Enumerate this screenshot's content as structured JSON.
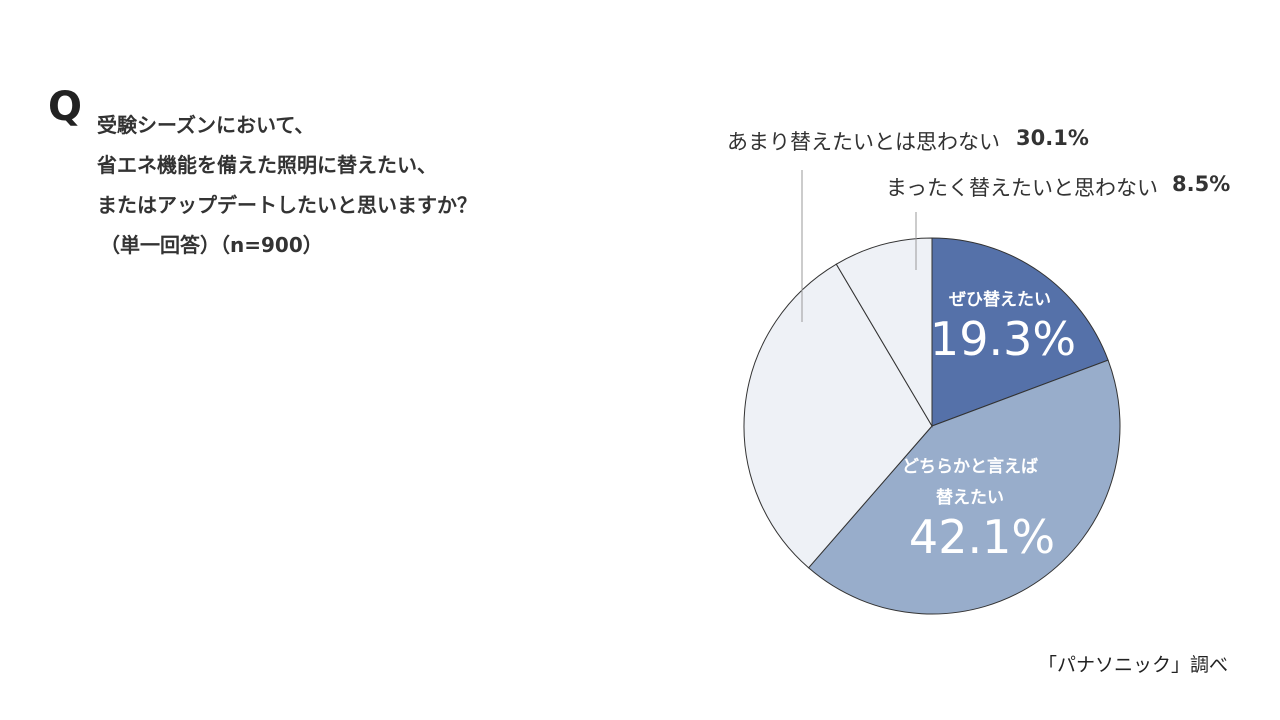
{
  "chart_data": {
    "type": "pie",
    "question_mark": "Q",
    "title_lines": [
      "受験シーズンにおいて、",
      "省エネ機能を備えた照明に替えたい、",
      "またはアップデートしたいと思いますか？"
    ],
    "subtitle": "（単一回答）（n=900）",
    "categories": [
      "ぜひ替えたい",
      "どちらかと言えば\n替えたい",
      "あまり替えたいとは思わない",
      "まったく替えたいと思わない"
    ],
    "values": [
      19.3,
      42.1,
      30.1,
      8.5
    ],
    "value_labels": [
      "19.3%",
      "42.1%",
      "30.1%",
      "8.5%"
    ],
    "colors": [
      "#5571a9",
      "#98adcb",
      "#eef1f6",
      "#eef1f6"
    ],
    "source": "「パナソニック」調べ"
  }
}
